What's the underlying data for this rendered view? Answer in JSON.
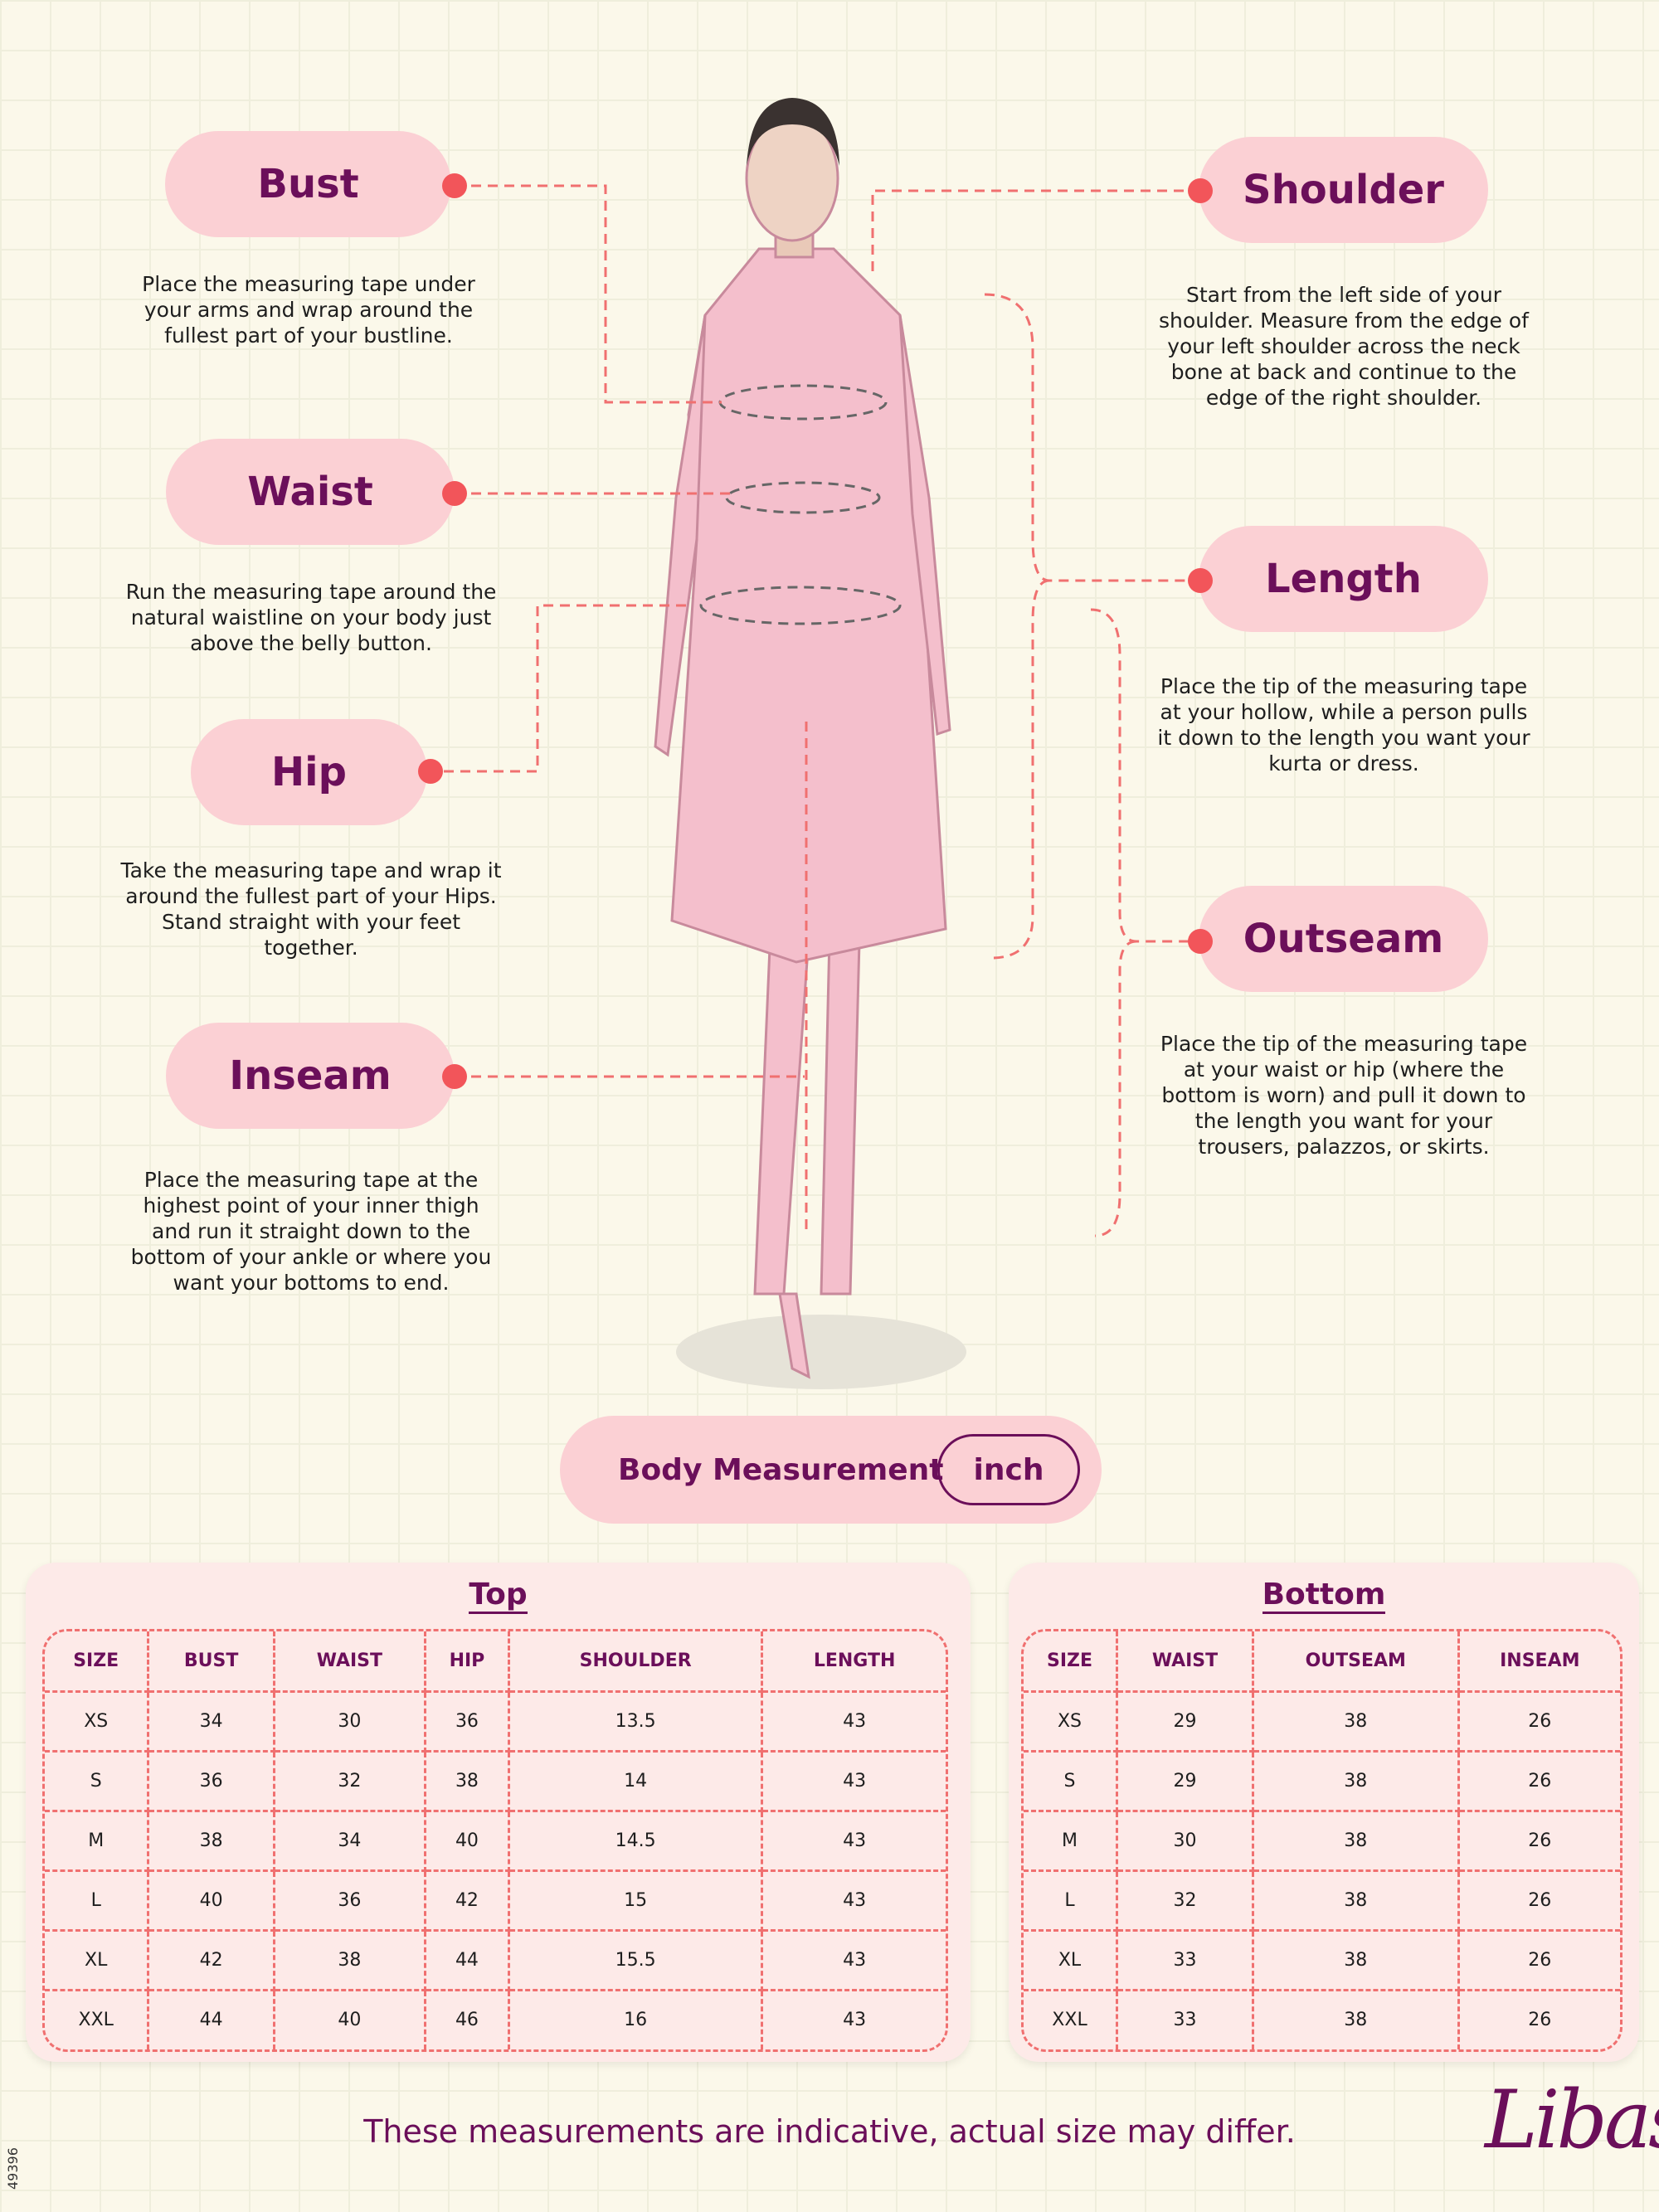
{
  "measurements": {
    "bust": {
      "title": "Bust",
      "desc": "Place the measuring tape under your arms and wrap around the fullest part of your bustline."
    },
    "waist": {
      "title": "Waist",
      "desc": "Run the measuring tape around the natural waistline on your body just above the belly button."
    },
    "hip": {
      "title": "Hip",
      "desc": "Take the measuring tape and wrap it around the fullest part of your Hips. Stand straight with your feet together."
    },
    "inseam": {
      "title": "Inseam",
      "desc": "Place the measuring tape at the highest point of your inner thigh and run it straight down to the bottom of your ankle or where you want your bottoms to end."
    },
    "shoulder": {
      "title": "Shoulder",
      "desc": "Start from the left side of your shoulder. Measure from the edge of your left shoulder across the neck bone at back and continue to the edge of the right shoulder."
    },
    "length": {
      "title": "Length",
      "desc": "Place the tip of the measuring tape at your hollow, while a person pulls it down to the length you want your kurta or dress."
    },
    "outseam": {
      "title": "Outseam",
      "desc": "Place the tip of the measuring tape at your waist or hip (where the bottom is worn) and pull it down to the length you want for your trousers, palazzos, or skirts."
    }
  },
  "body_measurement": {
    "label": "Body Measurement",
    "unit": "inch"
  },
  "top": {
    "title": "Top",
    "headers": [
      "SIZE",
      "BUST",
      "WAIST",
      "HIP",
      "SHOULDER",
      "LENGTH"
    ],
    "rows": [
      [
        "XS",
        "34",
        "30",
        "36",
        "13.5",
        "43"
      ],
      [
        "S",
        "36",
        "32",
        "38",
        "14",
        "43"
      ],
      [
        "M",
        "38",
        "34",
        "40",
        "14.5",
        "43"
      ],
      [
        "L",
        "40",
        "36",
        "42",
        "15",
        "43"
      ],
      [
        "XL",
        "42",
        "38",
        "44",
        "15.5",
        "43"
      ],
      [
        "XXL",
        "44",
        "40",
        "46",
        "16",
        "43"
      ]
    ]
  },
  "bottom": {
    "title": "Bottom",
    "headers": [
      "SIZE",
      "WAIST",
      "OUTSEAM",
      "INSEAM"
    ],
    "rows": [
      [
        "XS",
        "29",
        "38",
        "26"
      ],
      [
        "S",
        "29",
        "38",
        "26"
      ],
      [
        "M",
        "30",
        "38",
        "26"
      ],
      [
        "L",
        "32",
        "38",
        "26"
      ],
      [
        "XL",
        "33",
        "38",
        "26"
      ],
      [
        "XXL",
        "33",
        "38",
        "26"
      ]
    ]
  },
  "footer": "These measurements are indicative, actual size may differ.",
  "brand": "Libas",
  "code": "49396",
  "colors": {
    "accent": "#6b0f5a",
    "pill": "#fbd0d4",
    "dash": "#f07070",
    "dot": "#f2555a",
    "background": "#fbf8ea"
  }
}
